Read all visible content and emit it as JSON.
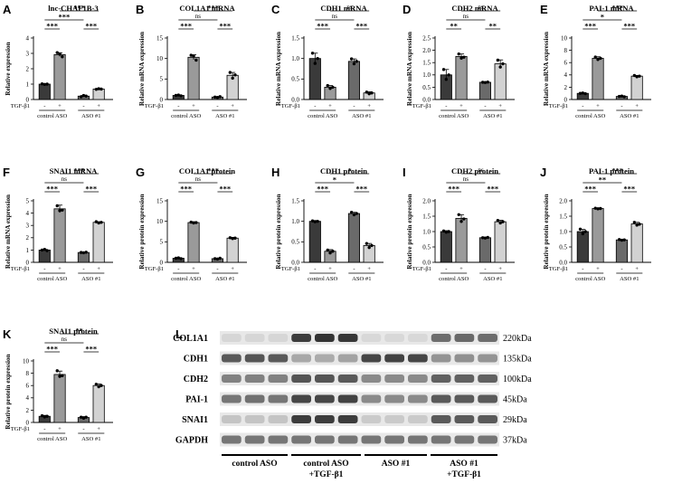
{
  "treatment_label": "TGF-β1",
  "treatment_marks": [
    "-",
    "+",
    "-",
    "+"
  ],
  "group_labels": [
    "control ASO",
    "ASO #1"
  ],
  "bar_colors": [
    "#3a3a3a",
    "#9a9a9a",
    "#6a6a6a",
    "#d2d2d2"
  ],
  "chart_data": [
    {
      "type": "bar",
      "panel": "A",
      "title": "lnc-CHAF1B-3",
      "ylabel": "Relative expression",
      "ylim": [
        0,
        4
      ],
      "yticks": [
        0,
        1,
        2,
        3,
        4
      ],
      "values": [
        1.0,
        2.92,
        0.22,
        0.68
      ],
      "errors": [
        0.03,
        0.12,
        0.04,
        0.04
      ],
      "points": [
        [
          1.02,
          0.98,
          1.0
        ],
        [
          3.05,
          2.95,
          2.78
        ],
        [
          0.18,
          0.26,
          0.22
        ],
        [
          0.66,
          0.7,
          0.68
        ]
      ],
      "comparisons": [
        {
          "from": 0,
          "to": 1,
          "label": "***"
        },
        {
          "from": 2,
          "to": 3,
          "label": "***"
        },
        {
          "from": 0,
          "to": 2,
          "label": "***"
        },
        {
          "from": 1,
          "to": 3,
          "label": "***"
        }
      ]
    },
    {
      "type": "bar",
      "panel": "B",
      "title": "COL1A1 mRNA",
      "ylabel": "Relative mRNA expression",
      "ylim": [
        0,
        15
      ],
      "yticks": [
        0,
        5,
        10,
        15
      ],
      "values": [
        1.0,
        10.3,
        0.6,
        5.9
      ],
      "errors": [
        0.1,
        0.6,
        0.1,
        0.7
      ],
      "points": [
        [
          1.0,
          1.1,
          0.9
        ],
        [
          10.8,
          10.6,
          9.6
        ],
        [
          0.6,
          0.5,
          0.7
        ],
        [
          6.6,
          5.2,
          6.0
        ]
      ],
      "comparisons": [
        {
          "from": 0,
          "to": 1,
          "label": "***"
        },
        {
          "from": 2,
          "to": 3,
          "label": "***"
        },
        {
          "from": 0,
          "to": 2,
          "label": "ns"
        },
        {
          "from": 1,
          "to": 3,
          "label": "***"
        }
      ]
    },
    {
      "type": "bar",
      "panel": "C",
      "title": "CDH1 mRNA",
      "ylabel": "Relative mRNA expression",
      "ylim": [
        0,
        1.5
      ],
      "yticks": [
        0.0,
        0.5,
        1.0,
        1.5
      ],
      "values": [
        1.0,
        0.3,
        0.93,
        0.16
      ],
      "errors": [
        0.13,
        0.04,
        0.06,
        0.03
      ],
      "points": [
        [
          1.13,
          0.88,
          1.0
        ],
        [
          0.34,
          0.27,
          0.3
        ],
        [
          0.99,
          0.87,
          0.93
        ],
        [
          0.18,
          0.14,
          0.16
        ]
      ],
      "comparisons": [
        {
          "from": 0,
          "to": 1,
          "label": "***"
        },
        {
          "from": 2,
          "to": 3,
          "label": "***"
        },
        {
          "from": 0,
          "to": 2,
          "label": "ns"
        },
        {
          "from": 1,
          "to": 3,
          "label": "ns"
        }
      ]
    },
    {
      "type": "bar",
      "panel": "D",
      "title": "CDH2 mRNA",
      "ylabel": "Relative mRNA expression",
      "ylim": [
        0,
        2.5
      ],
      "yticks": [
        0.0,
        0.5,
        1.0,
        1.5,
        2.0,
        2.5
      ],
      "values": [
        1.0,
        1.75,
        0.7,
        1.45
      ],
      "errors": [
        0.22,
        0.1,
        0.02,
        0.16
      ],
      "points": [
        [
          1.22,
          0.82,
          1.0
        ],
        [
          1.85,
          1.68,
          1.72
        ],
        [
          0.7,
          0.69,
          0.71
        ],
        [
          1.6,
          1.32,
          1.45
        ]
      ],
      "comparisons": [
        {
          "from": 0,
          "to": 1,
          "label": "**"
        },
        {
          "from": 2,
          "to": 3,
          "label": "**"
        },
        {
          "from": 0,
          "to": 2,
          "label": "ns"
        },
        {
          "from": 1,
          "to": 3,
          "label": "ns"
        }
      ]
    },
    {
      "type": "bar",
      "panel": "E",
      "title": "PAI-1 mRNA",
      "ylabel": "Relative mRNA expression",
      "ylim": [
        0,
        10
      ],
      "yticks": [
        0,
        2,
        4,
        6,
        8,
        10
      ],
      "values": [
        1.0,
        6.7,
        0.5,
        3.8
      ],
      "errors": [
        0.05,
        0.25,
        0.05,
        0.12
      ],
      "points": [
        [
          1.0,
          1.05,
          0.95
        ],
        [
          6.9,
          6.5,
          6.7
        ],
        [
          0.5,
          0.55,
          0.45
        ],
        [
          3.9,
          3.7,
          3.8
        ]
      ],
      "comparisons": [
        {
          "from": 0,
          "to": 1,
          "label": "***"
        },
        {
          "from": 2,
          "to": 3,
          "label": "***"
        },
        {
          "from": 0,
          "to": 2,
          "label": "*"
        },
        {
          "from": 1,
          "to": 3,
          "label": "***"
        }
      ]
    },
    {
      "type": "bar",
      "panel": "F",
      "title": "SNAI1 mRNA",
      "ylabel": "Relative mRNA expression",
      "ylim": [
        0,
        5
      ],
      "yticks": [
        0,
        1,
        2,
        3,
        4,
        5
      ],
      "values": [
        1.0,
        4.35,
        0.8,
        3.25
      ],
      "errors": [
        0.05,
        0.3,
        0.03,
        0.05
      ],
      "points": [
        [
          1.0,
          1.05,
          0.95
        ],
        [
          4.6,
          4.2,
          4.25
        ],
        [
          0.8,
          0.78,
          0.82
        ],
        [
          3.3,
          3.2,
          3.25
        ]
      ],
      "comparisons": [
        {
          "from": 0,
          "to": 1,
          "label": "***"
        },
        {
          "from": 2,
          "to": 3,
          "label": "***"
        },
        {
          "from": 0,
          "to": 2,
          "label": "ns"
        },
        {
          "from": 1,
          "to": 3,
          "label": "***"
        }
      ]
    },
    {
      "type": "bar",
      "panel": "G",
      "title": "COL1A1 protein",
      "ylabel": "Relative protein expression",
      "ylim": [
        0,
        15
      ],
      "yticks": [
        0,
        5,
        10,
        15
      ],
      "values": [
        1.0,
        9.7,
        0.9,
        5.9
      ],
      "errors": [
        0.1,
        0.2,
        0.1,
        0.2
      ],
      "points": [
        [
          1.0,
          1.1,
          0.9
        ],
        [
          9.8,
          9.6,
          9.7
        ],
        [
          0.9,
          0.8,
          1.0
        ],
        [
          6.0,
          5.8,
          5.9
        ]
      ],
      "comparisons": [
        {
          "from": 0,
          "to": 1,
          "label": "***"
        },
        {
          "from": 2,
          "to": 3,
          "label": "***"
        },
        {
          "from": 0,
          "to": 2,
          "label": "ns"
        },
        {
          "from": 1,
          "to": 3,
          "label": "***"
        }
      ]
    },
    {
      "type": "bar",
      "panel": "H",
      "title": "CDH1 protein",
      "ylabel": "Relative protein expression",
      "ylim": [
        0,
        1.5
      ],
      "yticks": [
        0.0,
        0.5,
        1.0,
        1.5
      ],
      "values": [
        1.0,
        0.27,
        1.19,
        0.41
      ],
      "errors": [
        0.02,
        0.04,
        0.03,
        0.05
      ],
      "points": [
        [
          1.01,
          0.99,
          1.0
        ],
        [
          0.3,
          0.23,
          0.27
        ],
        [
          1.22,
          1.16,
          1.19
        ],
        [
          0.46,
          0.36,
          0.41
        ]
      ],
      "comparisons": [
        {
          "from": 0,
          "to": 1,
          "label": "***"
        },
        {
          "from": 2,
          "to": 3,
          "label": "***"
        },
        {
          "from": 0,
          "to": 2,
          "label": "*"
        },
        {
          "from": 1,
          "to": 3,
          "label": "*"
        }
      ]
    },
    {
      "type": "bar",
      "panel": "I",
      "title": "CDH2 protein",
      "ylabel": "Relative protein expression",
      "ylim": [
        0,
        2.0
      ],
      "yticks": [
        0.0,
        0.5,
        1.0,
        1.5,
        2.0
      ],
      "values": [
        1.0,
        1.43,
        0.8,
        1.32
      ],
      "errors": [
        0.03,
        0.12,
        0.02,
        0.05
      ],
      "points": [
        [
          1.02,
          0.98,
          1.0
        ],
        [
          1.55,
          1.33,
          1.41
        ],
        [
          0.8,
          0.79,
          0.81
        ],
        [
          1.36,
          1.28,
          1.32
        ]
      ],
      "comparisons": [
        {
          "from": 0,
          "to": 1,
          "label": "***"
        },
        {
          "from": 2,
          "to": 3,
          "label": "***"
        },
        {
          "from": 0,
          "to": 2,
          "label": "ns"
        },
        {
          "from": 1,
          "to": 3,
          "label": "ns"
        }
      ]
    },
    {
      "type": "bar",
      "panel": "J",
      "title": "PAI-1 protein",
      "ylabel": "Relative protein expression",
      "ylim": [
        0,
        2.0
      ],
      "yticks": [
        0.0,
        0.5,
        1.0,
        1.5,
        2.0
      ],
      "values": [
        1.0,
        1.75,
        0.73,
        1.25
      ],
      "errors": [
        0.07,
        0.02,
        0.02,
        0.05
      ],
      "points": [
        [
          1.08,
          0.93,
          1.0
        ],
        [
          1.76,
          1.74,
          1.75
        ],
        [
          0.74,
          0.72,
          0.73
        ],
        [
          1.3,
          1.21,
          1.24
        ]
      ],
      "comparisons": [
        {
          "from": 0,
          "to": 1,
          "label": "***"
        },
        {
          "from": 2,
          "to": 3,
          "label": "***"
        },
        {
          "from": 0,
          "to": 2,
          "label": "**"
        },
        {
          "from": 1,
          "to": 3,
          "label": "***"
        }
      ]
    },
    {
      "type": "bar",
      "panel": "K",
      "title": "SNAI1 protein",
      "ylabel": "Relative protein expression",
      "ylim": [
        0,
        10
      ],
      "yticks": [
        0,
        2,
        4,
        6,
        8,
        10
      ],
      "values": [
        1.0,
        7.8,
        0.8,
        6.0
      ],
      "errors": [
        0.15,
        0.55,
        0.15,
        0.25
      ],
      "points": [
        [
          1.1,
          0.9,
          1.0
        ],
        [
          8.4,
          7.5,
          7.6
        ],
        [
          0.85,
          0.7,
          0.85
        ],
        [
          6.2,
          5.8,
          6.0
        ]
      ],
      "comparisons": [
        {
          "from": 0,
          "to": 1,
          "label": "***"
        },
        {
          "from": 2,
          "to": 3,
          "label": "***"
        },
        {
          "from": 0,
          "to": 2,
          "label": "ns"
        },
        {
          "from": 1,
          "to": 3,
          "label": "**"
        }
      ]
    }
  ],
  "blot": {
    "panel": "L",
    "rows": [
      {
        "label": "COL1A1",
        "kda": "220kDa",
        "intensity": [
          0.06,
          0.06,
          0.06,
          0.85,
          0.9,
          0.88,
          0.05,
          0.05,
          0.05,
          0.6,
          0.62,
          0.6
        ]
      },
      {
        "label": "CDH1",
        "kda": "135kDa",
        "intensity": [
          0.7,
          0.72,
          0.7,
          0.3,
          0.28,
          0.32,
          0.8,
          0.82,
          0.8,
          0.4,
          0.42,
          0.4
        ]
      },
      {
        "label": "CDH2",
        "kda": "100kDa",
        "intensity": [
          0.5,
          0.5,
          0.5,
          0.72,
          0.72,
          0.7,
          0.45,
          0.45,
          0.45,
          0.66,
          0.66,
          0.66
        ]
      },
      {
        "label": "PAI-1",
        "kda": "45kDa",
        "intensity": [
          0.55,
          0.58,
          0.55,
          0.8,
          0.8,
          0.82,
          0.45,
          0.45,
          0.45,
          0.7,
          0.7,
          0.7
        ]
      },
      {
        "label": "SNAI1",
        "kda": "29kDa",
        "intensity": [
          0.15,
          0.15,
          0.15,
          0.85,
          0.85,
          0.85,
          0.12,
          0.12,
          0.12,
          0.7,
          0.7,
          0.7
        ]
      },
      {
        "label": "GAPDH",
        "kda": "37kDa",
        "intensity": [
          0.55,
          0.55,
          0.55,
          0.55,
          0.55,
          0.55,
          0.55,
          0.55,
          0.55,
          0.55,
          0.55,
          0.55
        ]
      }
    ],
    "groups": [
      {
        "line1": "control ASO",
        "line2": ""
      },
      {
        "line1": "control ASO",
        "line2": "+TGF-β1"
      },
      {
        "line1": "ASO #1",
        "line2": ""
      },
      {
        "line1": "ASO #1",
        "line2": "+TGF-β1"
      }
    ]
  }
}
